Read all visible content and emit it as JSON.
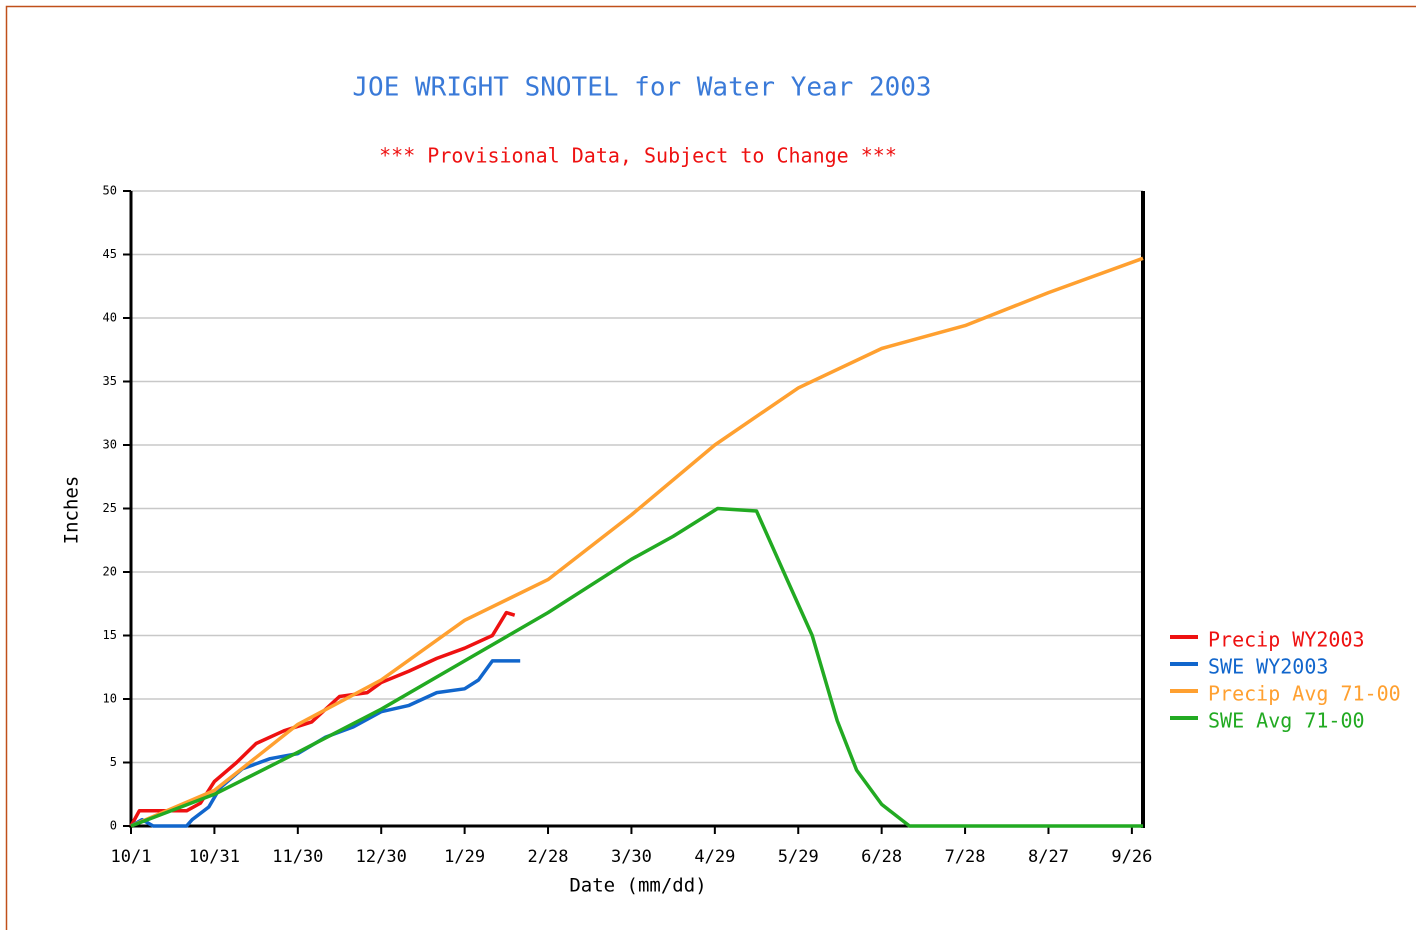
{
  "chart_data": {
    "type": "line",
    "title": "JOE WRIGHT SNOTEL for Water Year 2003",
    "subtitle": "*** Provisional Data, Subject to Change ***",
    "x_label": "Date (mm/dd)",
    "y_label": "Inches",
    "xlim": [
      0,
      364
    ],
    "ylim": [
      0,
      50
    ],
    "xticks": [
      {
        "value": 0,
        "label": "10/1"
      },
      {
        "value": 30,
        "label": "10/31"
      },
      {
        "value": 60,
        "label": "11/30"
      },
      {
        "value": 90,
        "label": "12/30"
      },
      {
        "value": 120,
        "label": "1/29"
      },
      {
        "value": 150,
        "label": "2/28"
      },
      {
        "value": 180,
        "label": "3/30"
      },
      {
        "value": 210,
        "label": "4/29"
      },
      {
        "value": 240,
        "label": "5/29"
      },
      {
        "value": 270,
        "label": "6/28"
      },
      {
        "value": 300,
        "label": "7/28"
      },
      {
        "value": 330,
        "label": "8/27"
      },
      {
        "value": 360,
        "label": "9/26"
      }
    ],
    "yticks": [
      0,
      5,
      10,
      15,
      20,
      25,
      30,
      35,
      40,
      45,
      50
    ],
    "grid": true,
    "legend": "right",
    "series": [
      {
        "name": "Precip WY2003",
        "color": "#ee1111",
        "x": [
          0,
          3,
          20,
          25,
          30,
          38,
          45,
          55,
          65,
          75,
          85,
          90,
          100,
          110,
          120,
          130,
          135,
          138
        ],
        "values": [
          0,
          1.2,
          1.2,
          1.8,
          3.5,
          5,
          6.5,
          7.5,
          8.2,
          10.2,
          10.5,
          11.3,
          12.2,
          13.2,
          14,
          15,
          16.8,
          16.6
        ]
      },
      {
        "name": "SWE WY2003",
        "color": "#1166cc",
        "x": [
          0,
          4,
          8,
          20,
          22,
          28,
          32,
          40,
          50,
          60,
          70,
          80,
          90,
          100,
          110,
          120,
          125,
          130,
          140
        ],
        "values": [
          0,
          0.5,
          0,
          0,
          0.5,
          1.5,
          3,
          4.5,
          5.3,
          5.7,
          7,
          7.8,
          9,
          9.5,
          10.5,
          10.8,
          11.5,
          13,
          13
        ]
      },
      {
        "name": "Precip Avg 71-00",
        "color": "#ffa030",
        "x": [
          0,
          30,
          60,
          90,
          120,
          150,
          180,
          210,
          240,
          270,
          300,
          330,
          364
        ],
        "values": [
          0,
          2.8,
          8,
          11.5,
          16.2,
          19.4,
          24.5,
          30,
          34.5,
          37.6,
          39.4,
          42,
          44.7
        ]
      },
      {
        "name": "SWE Avg 71-00",
        "color": "#22aa22",
        "x": [
          0,
          30,
          60,
          90,
          120,
          150,
          180,
          195,
          211,
          225,
          236,
          245,
          254,
          261,
          270,
          280,
          364
        ],
        "values": [
          0,
          2.5,
          5.8,
          9.2,
          13,
          16.8,
          21,
          22.8,
          25,
          24.8,
          19.4,
          15,
          8.3,
          4.4,
          1.7,
          0,
          0
        ]
      }
    ]
  }
}
